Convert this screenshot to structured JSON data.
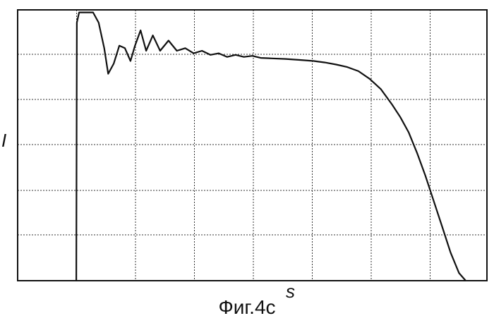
{
  "chart_data": {
    "type": "line",
    "title": "",
    "xlabel": "s",
    "ylabel": "I",
    "caption": "Фиг.4с",
    "grid": true,
    "xlim": [
      0,
      8.4
    ],
    "ylim": [
      0,
      5.3
    ],
    "series": [
      {
        "x": [
          1.05,
          1.06,
          1.1,
          1.35,
          1.45,
          1.55,
          1.62,
          1.72,
          1.82,
          1.92,
          2.02,
          2.1,
          2.2,
          2.3,
          2.42,
          2.55,
          2.7,
          2.85,
          3.0,
          3.15,
          3.3,
          3.45,
          3.6,
          3.75,
          3.9,
          4.05,
          4.2,
          4.35,
          4.55,
          4.8,
          5.05,
          5.3,
          5.5,
          5.7,
          5.9,
          6.1,
          6.3,
          6.5,
          6.7,
          6.85,
          7.0,
          7.15,
          7.3,
          7.45,
          7.6,
          7.75,
          7.9,
          8.02
        ],
        "y": [
          0,
          5.05,
          5.25,
          5.25,
          5.05,
          4.55,
          4.05,
          4.25,
          4.6,
          4.55,
          4.3,
          4.6,
          4.9,
          4.5,
          4.8,
          4.5,
          4.7,
          4.5,
          4.55,
          4.45,
          4.5,
          4.42,
          4.45,
          4.38,
          4.42,
          4.38,
          4.4,
          4.36,
          4.35,
          4.34,
          4.32,
          4.3,
          4.27,
          4.23,
          4.18,
          4.1,
          3.95,
          3.75,
          3.45,
          3.2,
          2.9,
          2.5,
          2.05,
          1.55,
          1.05,
          0.55,
          0.15,
          0
        ]
      }
    ]
  }
}
